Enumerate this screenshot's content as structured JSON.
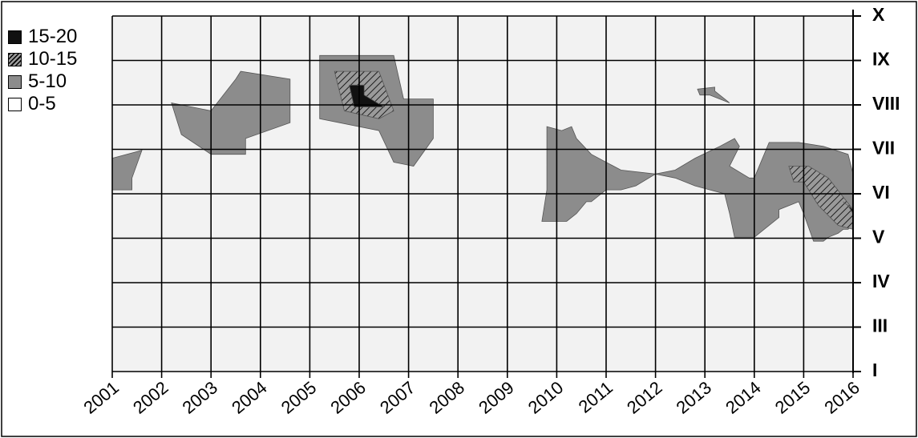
{
  "chart_data": {
    "type": "heatmap",
    "title": "",
    "xlabel": "",
    "ylabel": "",
    "x_ticks": [
      "2001",
      "2002",
      "2003",
      "2004",
      "2005",
      "2006",
      "2007",
      "2008",
      "2009",
      "2010",
      "2011",
      "2012",
      "2013",
      "2014",
      "2015",
      "2016"
    ],
    "x_range": [
      2001,
      2016
    ],
    "y_ticks": [
      {
        "label": "I",
        "value": 1
      },
      {
        "label": "III",
        "value": 3
      },
      {
        "label": "IV",
        "value": 4
      },
      {
        "label": "V",
        "value": 5
      },
      {
        "label": "VI",
        "value": 6
      },
      {
        "label": "VII",
        "value": 7
      },
      {
        "label": "VIII",
        "value": 8
      },
      {
        "label": "IX",
        "value": 9
      },
      {
        "label": "X",
        "value": 10
      }
    ],
    "y_range": [
      1,
      10
    ],
    "grid": true,
    "legend_position": "top-left",
    "legend": [
      {
        "label": "15-20",
        "fill": "#111111"
      },
      {
        "label": "10-15",
        "fill": "hatch"
      },
      {
        "label": "5-10",
        "fill": "#8c8c8c"
      },
      {
        "label": "0-5",
        "fill": "#f2f2f2"
      }
    ],
    "contours": [
      {
        "level": "5-10",
        "fill": "#8c8c8c",
        "points": [
          [
            2001,
            6.4
          ],
          [
            2001.6,
            6.6
          ],
          [
            2001.4,
            5.9
          ],
          [
            2001.4,
            5.6
          ],
          [
            2001,
            5.6
          ]
        ]
      },
      {
        "level": "5-10",
        "fill": "#8c8c8c",
        "points": [
          [
            2002.2,
            7.8
          ],
          [
            2003,
            7.6
          ],
          [
            2003.5,
            8.4
          ],
          [
            2003.6,
            8.6
          ],
          [
            2004.6,
            8.4
          ],
          [
            2004.6,
            7.8
          ],
          [
            2004.6,
            7.3
          ],
          [
            2003.7,
            6.9
          ],
          [
            2003.7,
            6.5
          ],
          [
            2003,
            6.5
          ],
          [
            2002.4,
            7
          ]
        ]
      },
      {
        "level": "5-10",
        "fill": "#8c8c8c",
        "points": [
          [
            2005.2,
            9
          ],
          [
            2006.7,
            9
          ],
          [
            2006.9,
            7.9
          ],
          [
            2007.5,
            7.9
          ],
          [
            2007.5,
            6.9
          ],
          [
            2007.1,
            6.2
          ],
          [
            2006.7,
            6.3
          ],
          [
            2006.4,
            7.1
          ],
          [
            2005.2,
            7.4
          ]
        ]
      },
      {
        "level": "10-15",
        "fill": "hatch",
        "points": [
          [
            2005.5,
            8.6
          ],
          [
            2006.4,
            8.6
          ],
          [
            2006.7,
            7.6
          ],
          [
            2006.4,
            7.4
          ],
          [
            2005.7,
            7.6
          ]
        ]
      },
      {
        "level": "15-20",
        "fill": "#111111",
        "points": [
          [
            2005.8,
            8.25
          ],
          [
            2006.1,
            8.25
          ],
          [
            2006.1,
            8
          ],
          [
            2006.5,
            7.7
          ],
          [
            2006.2,
            7.7
          ],
          [
            2005.9,
            7.7
          ]
        ]
      },
      {
        "level": "5-10",
        "fill": "#8c8c8c",
        "points": [
          [
            2009.8,
            7.2
          ],
          [
            2010.1,
            7.1
          ],
          [
            2010.3,
            7.2
          ],
          [
            2010.4,
            6.9
          ],
          [
            2010.7,
            6.5
          ],
          [
            2011.3,
            6.1
          ],
          [
            2012,
            6
          ],
          [
            2012.4,
            6.1
          ],
          [
            2012.8,
            6.4
          ],
          [
            2013.3,
            6.7
          ],
          [
            2013.6,
            6.9
          ],
          [
            2013.7,
            6.7
          ],
          [
            2013.5,
            6.2
          ],
          [
            2013.9,
            5.9
          ],
          [
            2014,
            5.9
          ],
          [
            2014.3,
            6.8
          ],
          [
            2014.9,
            6.8
          ],
          [
            2015.4,
            6.7
          ],
          [
            2015.9,
            6.5
          ],
          [
            2016,
            6
          ],
          [
            2016,
            4.7
          ],
          [
            2015.9,
            4.6
          ],
          [
            2015.8,
            4.6
          ],
          [
            2015.7,
            4.5
          ],
          [
            2015.5,
            4.4
          ],
          [
            2015.4,
            4.3
          ],
          [
            2015.2,
            4.3
          ],
          [
            2015,
            5
          ],
          [
            2014.9,
            5.3
          ],
          [
            2014.5,
            5.1
          ],
          [
            2014.5,
            4.9
          ],
          [
            2014.2,
            4.6
          ],
          [
            2014,
            4.4
          ],
          [
            2013.6,
            4.4
          ],
          [
            2013.5,
            5
          ],
          [
            2013.4,
            5.5
          ],
          [
            2013.1,
            5.6
          ],
          [
            2012.8,
            5.7
          ],
          [
            2012.4,
            5.9
          ],
          [
            2012,
            6
          ],
          [
            2011.6,
            5.7
          ],
          [
            2011.3,
            5.6
          ],
          [
            2011,
            5.6
          ],
          [
            2010.7,
            5.3
          ],
          [
            2010.6,
            5.3
          ],
          [
            2010.4,
            5
          ],
          [
            2010.2,
            4.8
          ],
          [
            2010,
            4.8
          ],
          [
            2009.7,
            4.8
          ],
          [
            2009.8,
            5.6
          ],
          [
            2009.8,
            6.3
          ]
        ]
      },
      {
        "level": "10-15",
        "fill": "hatch",
        "points": [
          [
            2014.7,
            6.2
          ],
          [
            2015.1,
            6.2
          ],
          [
            2015.5,
            5.9
          ],
          [
            2016,
            5.1
          ],
          [
            2016,
            4.6
          ],
          [
            2015.7,
            4.7
          ],
          [
            2015.3,
            5.2
          ],
          [
            2015,
            5.8
          ],
          [
            2014.8,
            5.8
          ]
        ]
      },
      {
        "level": "15-20",
        "fill": "#111111",
        "points": [
          [
            2015.8,
            5.3
          ],
          [
            2016,
            5.1
          ],
          [
            2016,
            5
          ],
          [
            2015.9,
            5.2
          ]
        ]
      },
      {
        "level": "5-10",
        "fill": "#8c8c8c",
        "points": [
          [
            2012.85,
            8.15
          ],
          [
            2013.2,
            8.2
          ],
          [
            2013.2,
            8.1
          ],
          [
            2013.5,
            7.8
          ],
          [
            2013.3,
            7.9
          ],
          [
            2013.1,
            8
          ],
          [
            2012.9,
            8
          ]
        ]
      }
    ]
  }
}
